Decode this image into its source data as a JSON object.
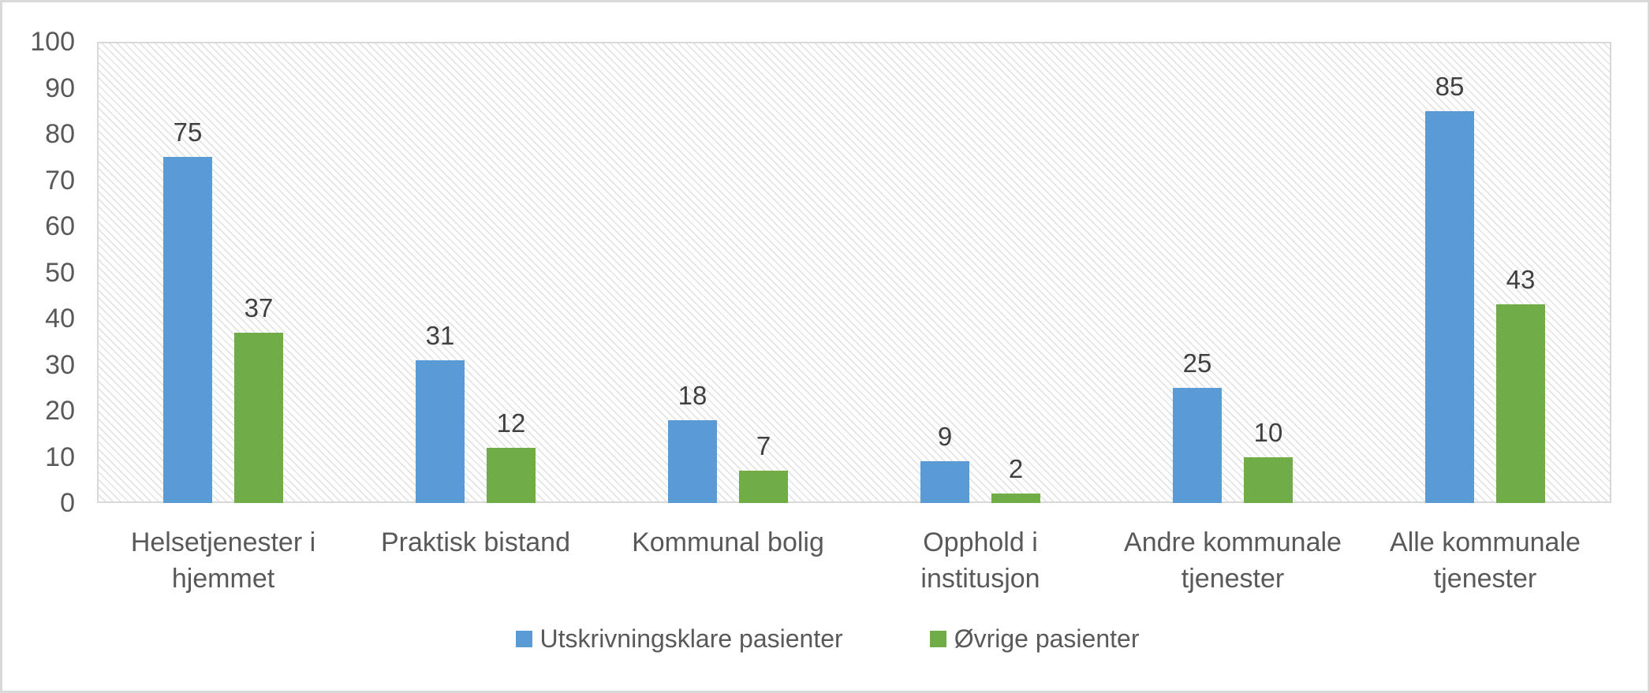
{
  "chart_data": {
    "type": "bar",
    "title": "",
    "categories": [
      "Helsetjenester i hjemmet",
      "Praktisk bistand",
      "Kommunal bolig",
      "Opphold i institusjon",
      "Andre kommunale tjenester",
      "Alle kommunale tjenester"
    ],
    "series": [
      {
        "name": "Utskrivningsklare pasienter",
        "color": "#5B9BD5",
        "values": [
          75,
          31,
          18,
          9,
          25,
          85
        ]
      },
      {
        "name": "Øvrige pasienter",
        "color": "#70AD47",
        "values": [
          37,
          12,
          7,
          2,
          10,
          43
        ]
      }
    ],
    "ylim": [
      0,
      100
    ],
    "yticks": [
      0,
      10,
      20,
      30,
      40,
      50,
      60,
      70,
      80,
      90,
      100
    ],
    "xlabel": "",
    "ylabel": "",
    "grid": "horizontal-and-vertical-major",
    "legend_position": "bottom",
    "data_labels": true,
    "plot_area_fill": "light-diagonal-hatch"
  },
  "colors": {
    "series_blue": "#5B9BD5",
    "series_green": "#70AD47",
    "gridline": "#D9D9D9",
    "hatch_stripe": "#E4E4E4",
    "axis_text": "#595959",
    "data_label_text": "#404040",
    "chart_border": "#D9D9D9",
    "background": "#FFFFFF"
  }
}
